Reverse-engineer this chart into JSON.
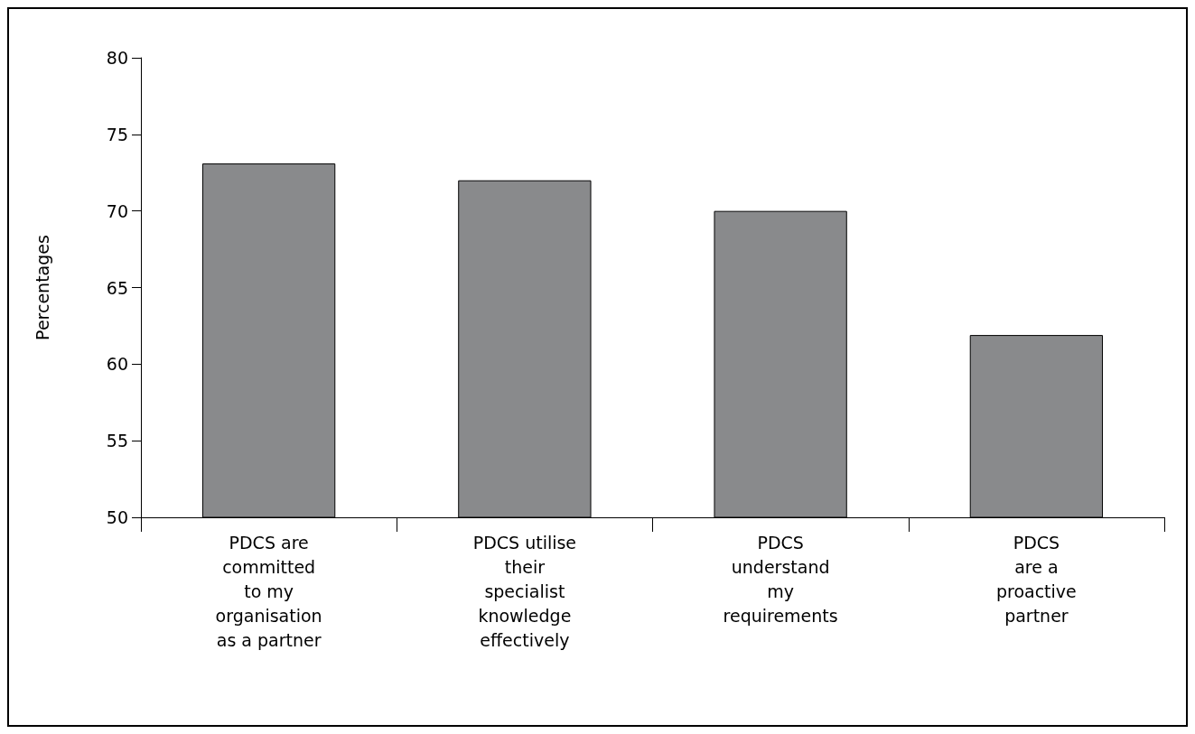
{
  "chart_data": {
    "type": "bar",
    "ylabel": "Percentages",
    "categories": [
      "PDCS are\ncommitted\nto my\norganisation\nas a partner",
      "PDCS utilise\ntheir\nspecialist\nknowledge\neffectively",
      "PDCS\nunderstand\nmy\nrequirements",
      "PDCS\nare a\nproactive\npartner"
    ],
    "values": [
      73.1,
      72,
      70,
      61.9
    ],
    "color": "#898a8c",
    "ylim": [
      50,
      80
    ],
    "yticks": [
      50,
      55,
      60,
      65,
      70,
      75,
      80
    ],
    "grid": false
  }
}
